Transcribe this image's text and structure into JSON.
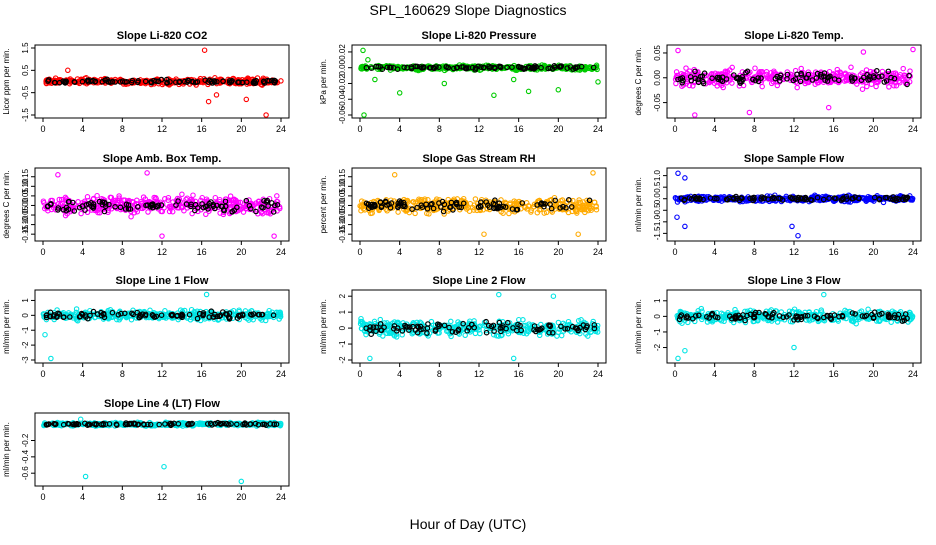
{
  "page": {
    "title": "SPL_160629  Slope Diagnostics",
    "xlabel": "Hour of Day (UTC)"
  },
  "chart_data": [
    {
      "type": "scatter",
      "title": "Slope Li-820 CO2",
      "xlabel": "",
      "ylabel": "Licor ppm per min.",
      "xlim": [
        0,
        24
      ],
      "ylim": [
        -1.5,
        1.5
      ],
      "xticks": [
        "0",
        "4",
        "8",
        "12",
        "16",
        "20",
        "24"
      ],
      "yticks": [
        {
          "v": -1.5,
          "label": "-1.5"
        },
        {
          "v": -0.5,
          "label": "-0.5"
        },
        {
          "v": 0.5,
          "label": "0.5"
        },
        {
          "v": 1.5,
          "label": "1.5"
        }
      ],
      "point_color": "#ff0000",
      "spread": 0.18,
      "outliers": [
        [
          16.3,
          1.4
        ],
        [
          16.7,
          -0.9
        ],
        [
          20.5,
          -0.8
        ],
        [
          22.5,
          -1.5
        ],
        [
          17.5,
          -0.6
        ],
        [
          2.5,
          0.5
        ]
      ]
    },
    {
      "type": "scatter",
      "title": "Slope Li-820 Pressure",
      "xlabel": "",
      "ylabel": "kPa per min.",
      "xlim": [
        0,
        24
      ],
      "ylim": [
        -0.06,
        0.025
      ],
      "xticks": [
        "0",
        "4",
        "8",
        "12",
        "16",
        "20",
        "24"
      ],
      "yticks": [
        {
          "v": -0.06,
          "label": "-0.06"
        },
        {
          "v": -0.04,
          "label": "-0.04"
        },
        {
          "v": -0.02,
          "label": "-0.02"
        },
        {
          "v": 0.0,
          "label": "0.00"
        },
        {
          "v": 0.02,
          "label": "0.02"
        }
      ],
      "point_color": "#00cc00",
      "spread": 0.004,
      "outliers": [
        [
          0.3,
          0.022
        ],
        [
          0.4,
          -0.06
        ],
        [
          0.8,
          0.01
        ],
        [
          4.0,
          -0.032
        ],
        [
          8.5,
          -0.02
        ],
        [
          13.5,
          -0.035
        ],
        [
          15.5,
          -0.015
        ],
        [
          17.0,
          -0.03
        ],
        [
          20.0,
          -0.028
        ],
        [
          24.0,
          -0.018
        ],
        [
          1.5,
          -0.015
        ]
      ]
    },
    {
      "type": "scatter",
      "title": "Slope Li-820 Temp.",
      "xlabel": "",
      "ylabel": "degrees C per min.",
      "xlim": [
        0,
        24
      ],
      "ylim": [
        -0.075,
        0.06
      ],
      "xticks": [
        "0",
        "4",
        "8",
        "12",
        "16",
        "20",
        "24"
      ],
      "yticks": [
        {
          "v": -0.05,
          "label": "-0.05"
        },
        {
          "v": 0.0,
          "label": "0.00"
        },
        {
          "v": 0.05,
          "label": "0.05"
        }
      ],
      "point_color": "#ff00ff",
      "spread": 0.025,
      "outliers": [
        [
          0.3,
          0.055
        ],
        [
          2.0,
          -0.075
        ],
        [
          7.5,
          -0.07
        ],
        [
          15.5,
          -0.06
        ],
        [
          19.0,
          0.052
        ],
        [
          24.0,
          0.057
        ]
      ]
    },
    {
      "type": "scatter",
      "title": "Slope Amb. Box Temp.",
      "xlabel": "",
      "ylabel": "degrees C per min.",
      "xlim": [
        0,
        24
      ],
      "ylim": [
        -0.17,
        0.18
      ],
      "xticks": [
        "0",
        "4",
        "8",
        "12",
        "16",
        "20",
        "24"
      ],
      "yticks": [
        {
          "v": -0.15,
          "label": "-0.15"
        },
        {
          "v": -0.1,
          "label": "-0.10"
        },
        {
          "v": -0.05,
          "label": "-0.05"
        },
        {
          "v": 0.0,
          "label": "0.00"
        },
        {
          "v": 0.05,
          "label": "0.05"
        },
        {
          "v": 0.1,
          "label": "0.10"
        },
        {
          "v": 0.15,
          "label": "0.15"
        }
      ],
      "point_color": "#ff00ff",
      "spread": 0.065,
      "outliers": [
        [
          1.5,
          0.16
        ],
        [
          10.5,
          0.17
        ],
        [
          12.0,
          -0.16
        ],
        [
          23.3,
          -0.16
        ]
      ]
    },
    {
      "type": "scatter",
      "title": "Slope Gas Stream RH",
      "xlabel": "",
      "ylabel": "percent per min.",
      "xlim": [
        0,
        24
      ],
      "ylim": [
        -0.17,
        0.18
      ],
      "xticks": [
        "0",
        "4",
        "8",
        "12",
        "16",
        "20",
        "24"
      ],
      "yticks": [
        {
          "v": -0.15,
          "label": "-0.15"
        },
        {
          "v": -0.1,
          "label": "-0.10"
        },
        {
          "v": -0.05,
          "label": "-0.05"
        },
        {
          "v": 0.0,
          "label": "0.00"
        },
        {
          "v": 0.05,
          "label": "0.05"
        },
        {
          "v": 0.1,
          "label": "0.10"
        },
        {
          "v": 0.15,
          "label": "0.15"
        }
      ],
      "point_color": "#ffaa00",
      "spread": 0.055,
      "outliers": [
        [
          3.5,
          0.16
        ],
        [
          12.5,
          -0.15
        ],
        [
          22.0,
          -0.15
        ],
        [
          23.5,
          0.17
        ]
      ]
    },
    {
      "type": "scatter",
      "title": "Slope Sample Flow",
      "xlabel": "",
      "ylabel": "ml/min per min.",
      "xlim": [
        0,
        24
      ],
      "ylim": [
        -1.7,
        1.2
      ],
      "xticks": [
        "0",
        "4",
        "8",
        "12",
        "16",
        "20",
        "24"
      ],
      "yticks": [
        {
          "v": -1.5,
          "label": "-1.5"
        },
        {
          "v": -1.0,
          "label": "-1.0"
        },
        {
          "v": -0.5,
          "label": "-0.5"
        },
        {
          "v": 0.0,
          "label": "0.0"
        },
        {
          "v": 0.5,
          "label": "0.5"
        },
        {
          "v": 1.0,
          "label": "1.0"
        }
      ],
      "point_color": "#0000ff",
      "spread": 0.18,
      "outliers": [
        [
          0.3,
          1.1
        ],
        [
          0.2,
          -0.8
        ],
        [
          1.0,
          -1.2
        ],
        [
          12.4,
          -1.6
        ],
        [
          1.0,
          0.9
        ],
        [
          11.8,
          -1.2
        ]
      ]
    },
    {
      "type": "scatter",
      "title": "Slope Line 1 Flow",
      "xlabel": "",
      "ylabel": "ml/min per min.",
      "xlim": [
        0,
        24
      ],
      "ylim": [
        -3,
        1.5
      ],
      "xticks": [
        "0",
        "4",
        "8",
        "12",
        "16",
        "20",
        "24"
      ],
      "yticks": [
        {
          "v": -3,
          "label": "-3"
        },
        {
          "v": -2,
          "label": "-2"
        },
        {
          "v": -1,
          "label": "-1"
        },
        {
          "v": 0,
          "label": "0"
        },
        {
          "v": 1,
          "label": "1"
        }
      ],
      "point_color": "#00e5e5",
      "spread": 0.45,
      "outliers": [
        [
          0.8,
          -2.9
        ],
        [
          16.5,
          1.4
        ],
        [
          0.2,
          -1.3
        ]
      ]
    },
    {
      "type": "scatter",
      "title": "Slope Line 2 Flow",
      "xlabel": "",
      "ylabel": "ml/min per min.",
      "xlim": [
        0,
        24
      ],
      "ylim": [
        -2,
        2.2
      ],
      "xticks": [
        "0",
        "4",
        "8",
        "12",
        "16",
        "20",
        "24"
      ],
      "yticks": [
        {
          "v": -2,
          "label": "-2"
        },
        {
          "v": -1,
          "label": "-1"
        },
        {
          "v": 0,
          "label": "0"
        },
        {
          "v": 1,
          "label": "1"
        },
        {
          "v": 2,
          "label": "2"
        }
      ],
      "point_color": "#00e5e5",
      "spread": 0.75,
      "outliers": [
        [
          1.0,
          -1.9
        ],
        [
          14.0,
          2.1
        ],
        [
          15.5,
          -1.9
        ],
        [
          19.5,
          2.0
        ]
      ]
    },
    {
      "type": "scatter",
      "title": "Slope Line 3 Flow",
      "xlabel": "",
      "ylabel": "ml/min per min.",
      "xlim": [
        0,
        24
      ],
      "ylim": [
        -2.8,
        1.5
      ],
      "xticks": [
        "0",
        "4",
        "8",
        "12",
        "16",
        "20",
        "24"
      ],
      "yticks": [
        {
          "v": -2,
          "label": "-2"
        },
        {
          "v": -1,
          "label": "-1"
        },
        {
          "v": 0,
          "label": "0"
        },
        {
          "v": 1,
          "label": "1"
        }
      ],
      "point_color": "#00e5e5",
      "spread": 0.55,
      "outliers": [
        [
          0.3,
          -2.7
        ],
        [
          1.0,
          -2.2
        ],
        [
          15.0,
          1.4
        ],
        [
          12.0,
          -2.0
        ]
      ]
    },
    {
      "type": "scatter",
      "title": "Slope Line 4 (LT) Flow",
      "xlabel": "",
      "ylabel": "ml/min per min.",
      "xlim": [
        0,
        24
      ],
      "ylim": [
        -0.72,
        0.1
      ],
      "xticks": [
        "0",
        "4",
        "8",
        "12",
        "16",
        "20",
        "24"
      ],
      "yticks": [
        {
          "v": -0.6,
          "label": "-0.6"
        },
        {
          "v": -0.4,
          "label": "-0.4"
        },
        {
          "v": -0.2,
          "label": "-0.2"
        }
      ],
      "point_color": "#00e5e5",
      "spread": 0.028,
      "outliers": [
        [
          4.3,
          -0.64
        ],
        [
          12.2,
          -0.52
        ],
        [
          20.0,
          -0.7
        ],
        [
          3.8,
          0.06
        ]
      ]
    }
  ]
}
